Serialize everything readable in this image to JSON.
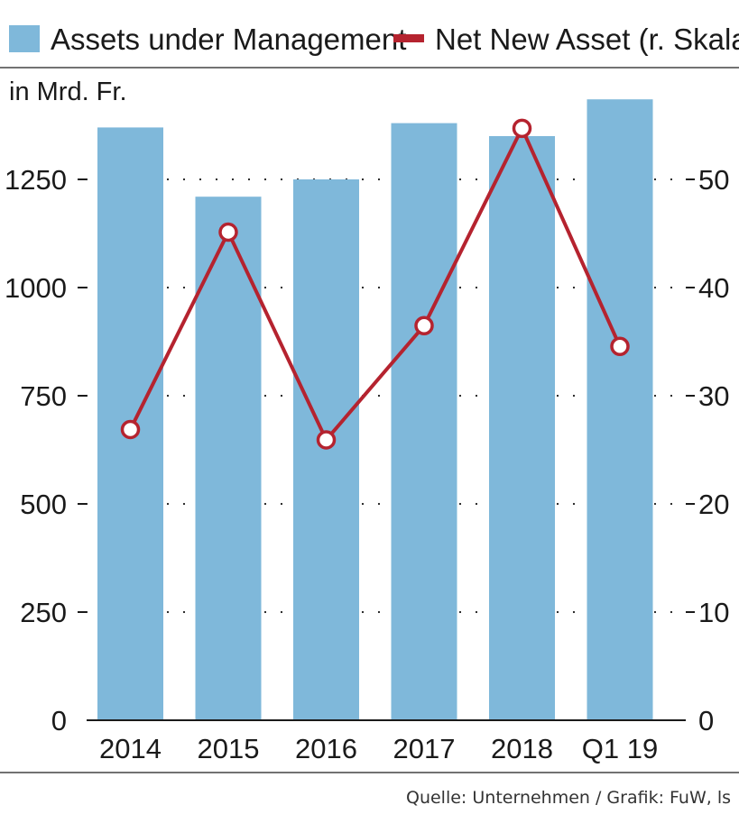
{
  "colors": {
    "bar": "#7fb8da",
    "line": "#b5232f",
    "marker_fill": "#ffffff",
    "text": "#1a1a1a",
    "rule": "#444444"
  },
  "chart_data": {
    "type": "bar",
    "unit_label": "in Mrd. Fr.",
    "categories": [
      "2014",
      "2015",
      "2016",
      "2017",
      "2018",
      "Q1 19"
    ],
    "series": [
      {
        "name": "Assets under Management",
        "type": "bar",
        "axis": "left",
        "values": [
          1370,
          1210,
          1250,
          1380,
          1350,
          1435
        ]
      },
      {
        "name": "Net New Asset (r. Skala)",
        "type": "line",
        "axis": "right",
        "values": [
          28,
          47,
          27,
          38,
          57,
          36
        ]
      }
    ],
    "y_left": {
      "ylim": [
        0,
        1500
      ],
      "ticks": [
        0,
        250,
        500,
        750,
        1000,
        1250
      ]
    },
    "y_right": {
      "ylim": [
        0,
        62.5
      ],
      "ticks": [
        0,
        10,
        20,
        30,
        40,
        50
      ]
    },
    "grid": "dotted horizontal",
    "legend": "top"
  },
  "source": "Quelle: Unternehmen / Grafik: FuW, ls"
}
